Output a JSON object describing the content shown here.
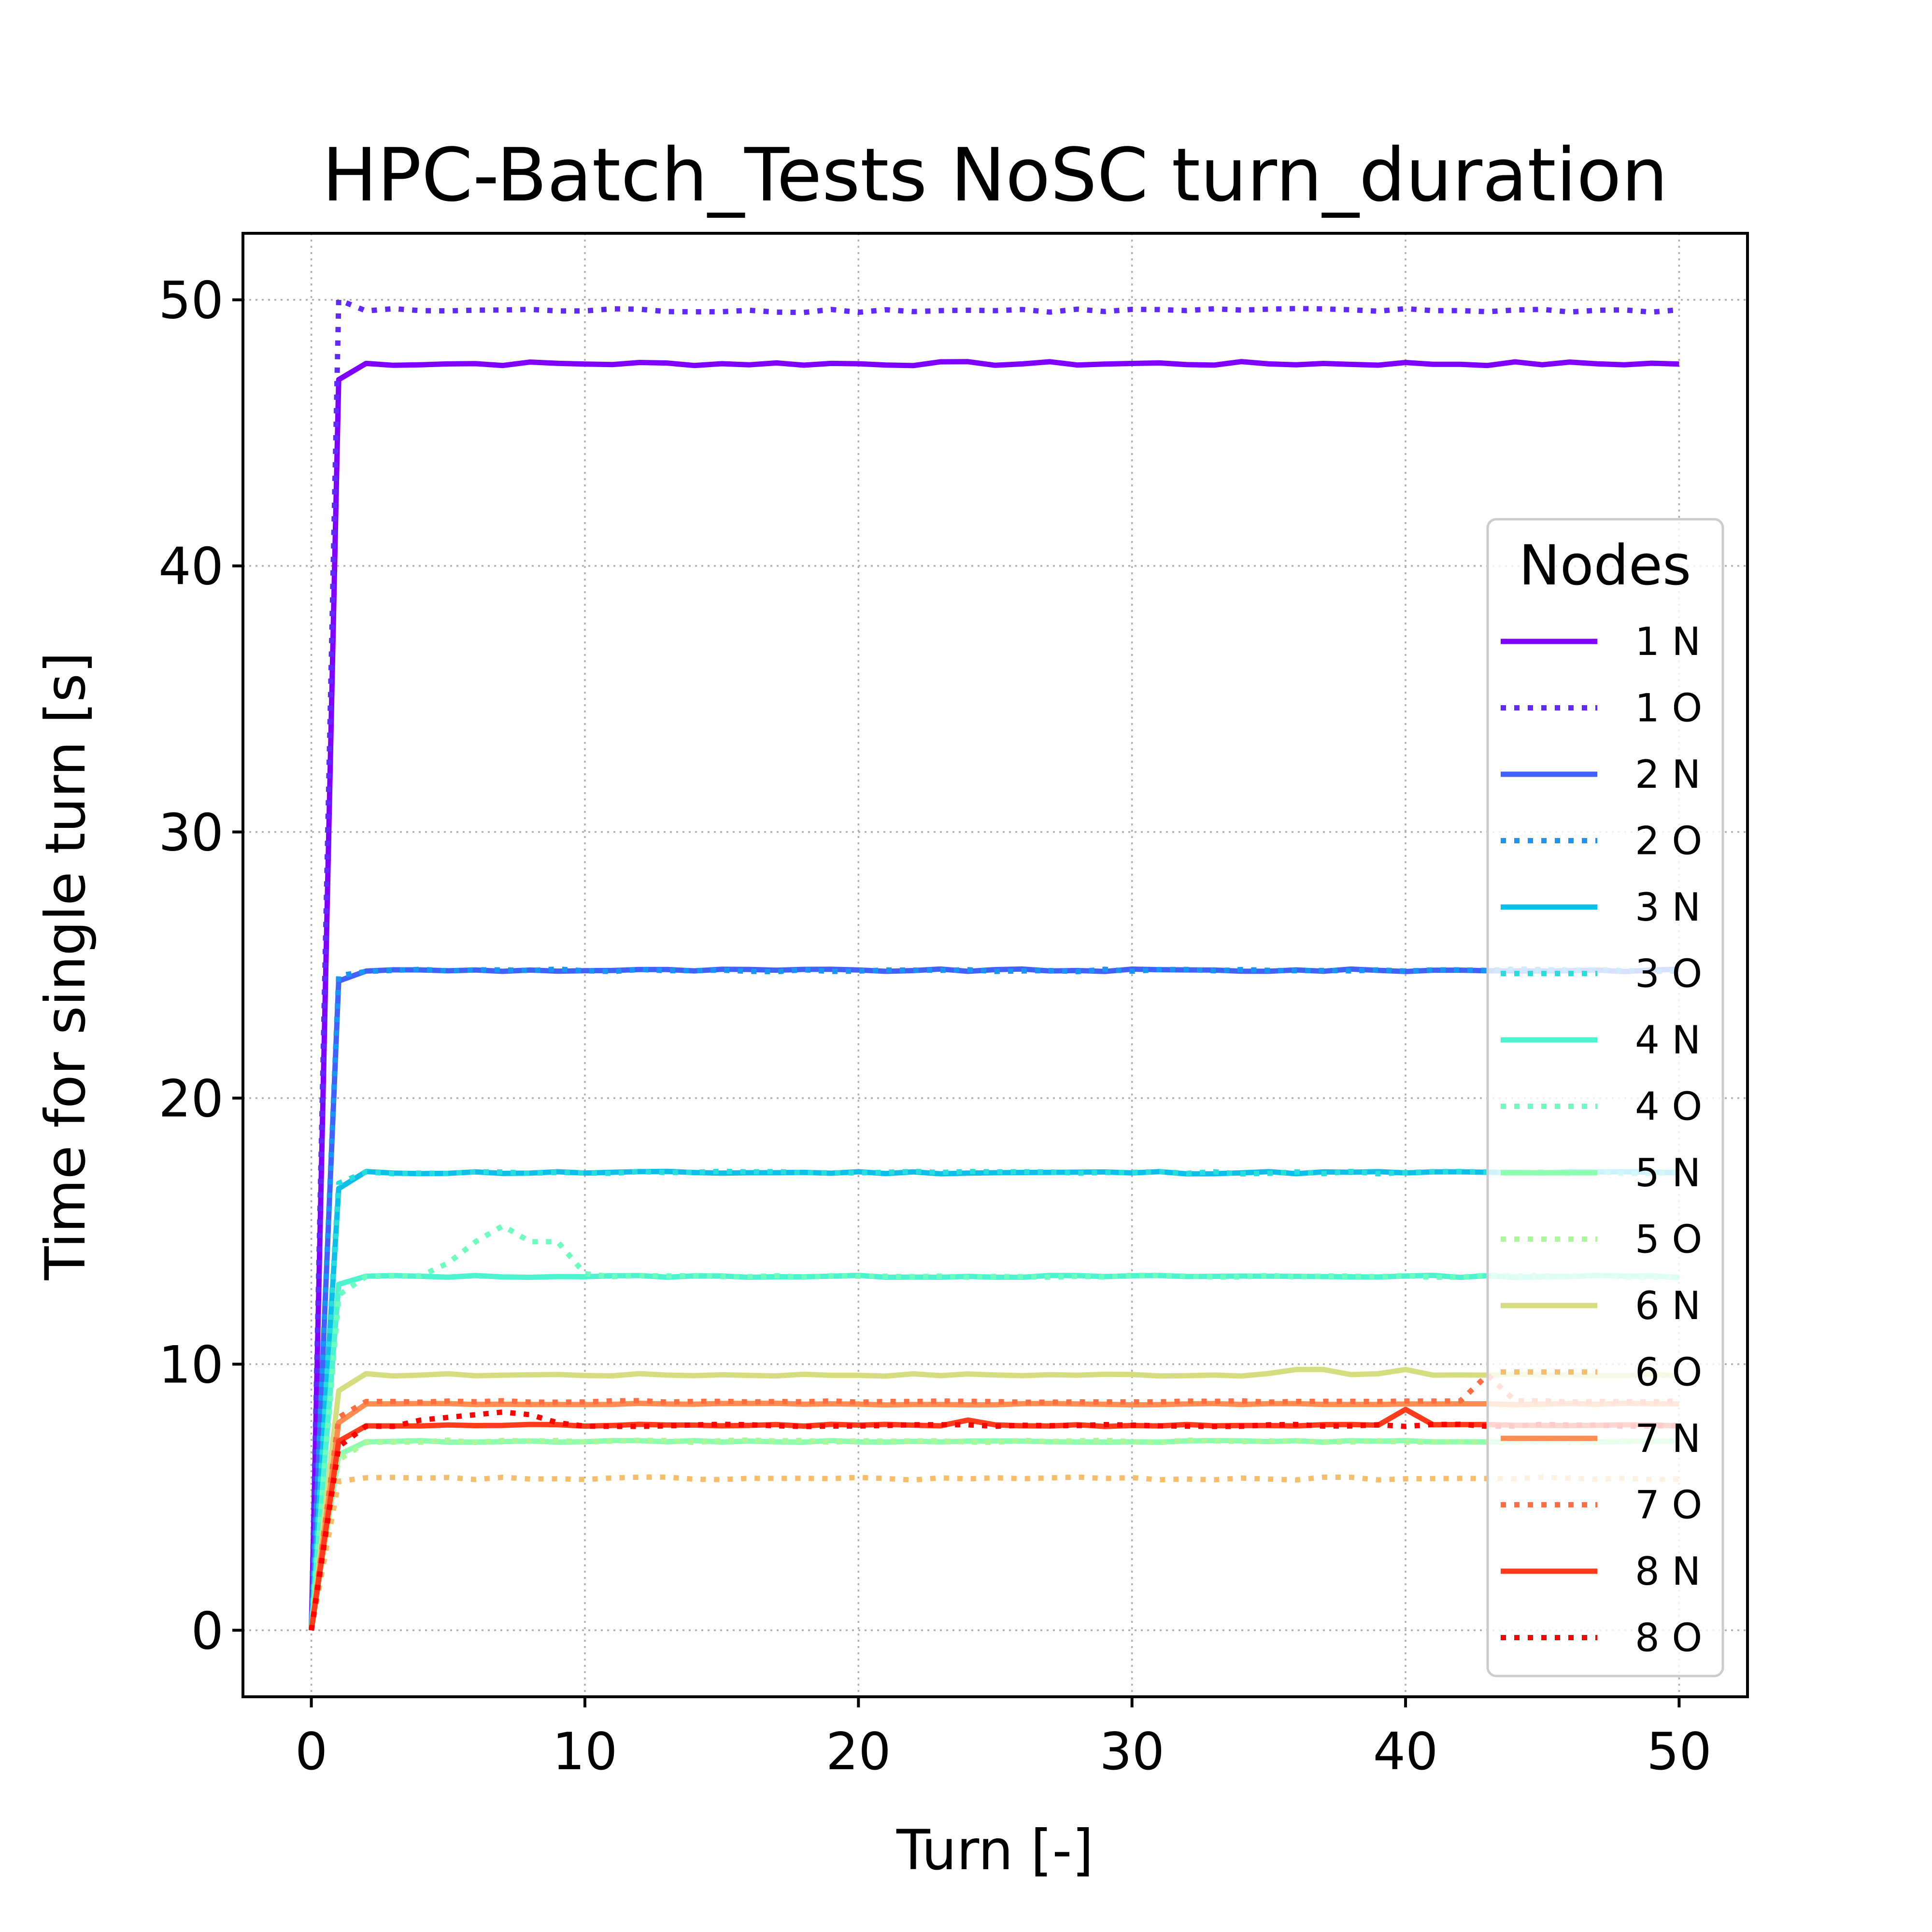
{
  "chart_data": {
    "type": "line",
    "title": "HPC-Batch_Tests NoSC turn_duration",
    "xlabel": "Turn [-]",
    "ylabel": "Time for single turn [s]",
    "xlim": [
      -2.5,
      52.5
    ],
    "ylim": [
      -2.5,
      52.5
    ],
    "xticks": [
      0,
      10,
      20,
      30,
      40,
      50
    ],
    "yticks": [
      0,
      10,
      20,
      30,
      40,
      50
    ],
    "grid": true,
    "legend": {
      "title": "Nodes",
      "position": "right"
    },
    "series": [
      {
        "name": "1 N",
        "style": "solid",
        "color": "#8000ff",
        "start": 0,
        "ramp": 47.0,
        "steady": 47.6,
        "noise": 0.08,
        "events": []
      },
      {
        "name": "1 O",
        "style": "dotted",
        "color": "#6129fe",
        "start": 0,
        "ramp": 50.0,
        "steady": 49.6,
        "noise": 0.08,
        "events": []
      },
      {
        "name": "2 N",
        "style": "solid",
        "color": "#4062fa",
        "start": 0,
        "ramp": 24.4,
        "steady": 24.8,
        "noise": 0.05,
        "events": []
      },
      {
        "name": "2 O",
        "style": "dotted",
        "color": "#1996f3",
        "start": 0,
        "ramp": 24.6,
        "steady": 24.8,
        "noise": 0.05,
        "events": []
      },
      {
        "name": "3 N",
        "style": "solid",
        "color": "#0dbfe8",
        "start": 0,
        "ramp": 16.6,
        "steady": 17.2,
        "noise": 0.05,
        "events": []
      },
      {
        "name": "3 O",
        "style": "dotted",
        "color": "#2adddd",
        "start": 0,
        "ramp": 16.8,
        "steady": 17.2,
        "noise": 0.05,
        "events": []
      },
      {
        "name": "4 N",
        "style": "solid",
        "color": "#4df3ce",
        "start": 0,
        "ramp": 13.0,
        "steady": 13.3,
        "noise": 0.04,
        "events": []
      },
      {
        "name": "4 O",
        "style": "dotted",
        "color": "#6dfdbe",
        "start": 0,
        "ramp": 12.6,
        "steady": 13.3,
        "noise": 0.04,
        "events": [
          [
            5,
            13.8
          ],
          [
            6,
            14.6
          ],
          [
            7,
            15.2
          ],
          [
            8,
            14.6
          ],
          [
            9,
            14.6
          ],
          [
            10,
            13.4
          ]
        ]
      },
      {
        "name": "5 N",
        "style": "solid",
        "color": "#8cfeae",
        "start": 0,
        "ramp": 6.6,
        "steady": 7.1,
        "noise": 0.03,
        "events": []
      },
      {
        "name": "5 O",
        "style": "dotted",
        "color": "#acf79c",
        "start": 0,
        "ramp": 6.4,
        "steady": 7.1,
        "noise": 0.05,
        "events": []
      },
      {
        "name": "6 N",
        "style": "solid",
        "color": "#d4dd80",
        "start": 0,
        "ramp": 9.0,
        "steady": 9.6,
        "noise": 0.05,
        "events": [
          [
            36,
            9.8
          ],
          [
            37,
            9.8
          ],
          [
            40,
            9.8
          ]
        ]
      },
      {
        "name": "6 O",
        "style": "dotted",
        "color": "#f6be6b",
        "start": 0,
        "ramp": 5.6,
        "steady": 5.7,
        "noise": 0.06,
        "events": []
      },
      {
        "name": "7 N",
        "style": "solid",
        "color": "#ff8d52",
        "start": 0,
        "ramp": 7.8,
        "steady": 8.5,
        "noise": 0.03,
        "events": []
      },
      {
        "name": "7 O",
        "style": "dotted",
        "color": "#ff6d41",
        "start": 0,
        "ramp": 8.0,
        "steady": 8.6,
        "noise": 0.03,
        "events": [
          [
            43,
            9.6
          ]
        ]
      },
      {
        "name": "8 N",
        "style": "solid",
        "color": "#ff3b1e",
        "start": 0,
        "ramp": 7.1,
        "steady": 7.7,
        "noise": 0.04,
        "events": [
          [
            24,
            7.9
          ],
          [
            40,
            8.3
          ]
        ]
      },
      {
        "name": "8 O",
        "style": "dotted",
        "color": "#ff0000",
        "start": 0,
        "ramp": 6.9,
        "steady": 7.7,
        "noise": 0.04,
        "events": [
          [
            4,
            7.9
          ],
          [
            5,
            8.0
          ],
          [
            6,
            8.1
          ],
          [
            7,
            8.2
          ],
          [
            8,
            8.1
          ],
          [
            9,
            7.8
          ]
        ]
      }
    ]
  }
}
